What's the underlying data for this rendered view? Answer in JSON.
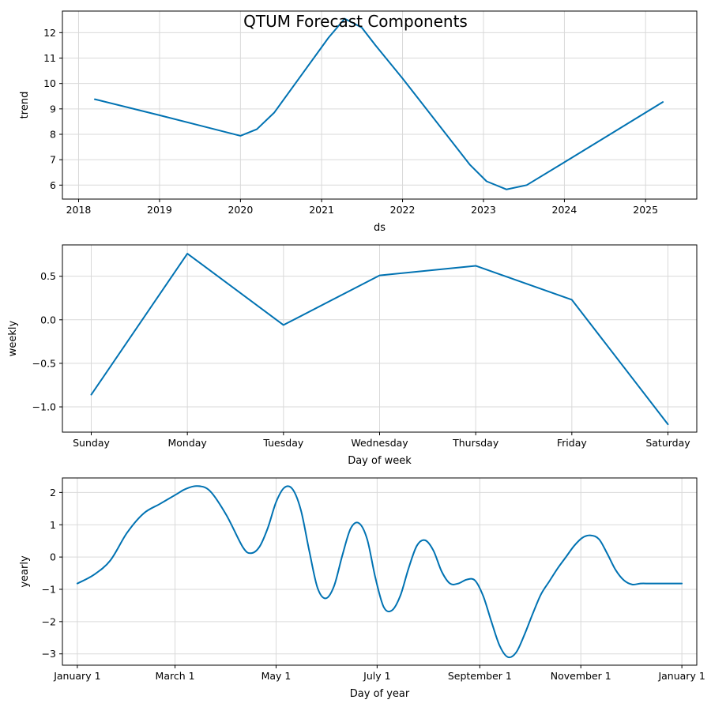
{
  "figure": {
    "title": "QTUM Forecast Components",
    "line_color": "#0072B2",
    "grid": true
  },
  "chart_data": [
    {
      "type": "line",
      "xlabel": "ds",
      "ylabel": "trend",
      "x_is_date": true,
      "xlim": [
        "2017-10-20",
        "2025-08-20"
      ],
      "ylim": [
        5.45,
        12.85
      ],
      "xticks": [
        {
          "value": "2018-01-01",
          "label": "2018"
        },
        {
          "value": "2019-01-01",
          "label": "2019"
        },
        {
          "value": "2020-01-01",
          "label": "2020"
        },
        {
          "value": "2021-01-01",
          "label": "2021"
        },
        {
          "value": "2022-01-01",
          "label": "2022"
        },
        {
          "value": "2023-01-01",
          "label": "2023"
        },
        {
          "value": "2024-01-01",
          "label": "2024"
        },
        {
          "value": "2025-01-01",
          "label": "2025"
        }
      ],
      "yticks": [
        {
          "value": 6,
          "label": "6"
        },
        {
          "value": 7,
          "label": "7"
        },
        {
          "value": 8,
          "label": "8"
        },
        {
          "value": 9,
          "label": "9"
        },
        {
          "value": 10,
          "label": "10"
        },
        {
          "value": 11,
          "label": "11"
        },
        {
          "value": 12,
          "label": "12"
        }
      ],
      "series": [
        {
          "x": [
            "2018-03-15",
            "2019-01-01",
            "2020-01-01",
            "2020-03-15",
            "2020-06-01",
            "2021-02-01",
            "2021-04-15",
            "2021-07-01",
            "2021-09-01",
            "2022-01-01",
            "2022-11-01",
            "2023-01-15",
            "2023-04-15",
            "2023-07-15",
            "2024-01-01",
            "2025-03-20"
          ],
          "y": [
            9.38,
            8.75,
            7.94,
            8.2,
            8.85,
            11.8,
            12.55,
            12.2,
            11.5,
            10.2,
            6.8,
            6.15,
            5.83,
            6.0,
            6.9,
            9.27
          ]
        }
      ]
    },
    {
      "type": "line",
      "xlabel": "Day of week",
      "ylabel": "weekly",
      "xlim": [
        -0.3,
        6.3
      ],
      "ylim": [
        -1.29,
        0.86
      ],
      "xticks": [
        {
          "value": 0,
          "label": "Sunday"
        },
        {
          "value": 1,
          "label": "Monday"
        },
        {
          "value": 2,
          "label": "Tuesday"
        },
        {
          "value": 3,
          "label": "Wednesday"
        },
        {
          "value": 4,
          "label": "Thursday"
        },
        {
          "value": 5,
          "label": "Friday"
        },
        {
          "value": 6,
          "label": "Saturday"
        }
      ],
      "yticks": [
        {
          "value": -1.0,
          "label": "−1.0"
        },
        {
          "value": -0.5,
          "label": "−0.5"
        },
        {
          "value": 0.0,
          "label": "0.0"
        },
        {
          "value": 0.5,
          "label": "0.5"
        }
      ],
      "series": [
        {
          "x": [
            0,
            1,
            2,
            3,
            4,
            5,
            6
          ],
          "y": [
            -0.86,
            0.76,
            -0.06,
            0.51,
            0.62,
            0.23,
            -1.2
          ]
        }
      ]
    },
    {
      "type": "line",
      "xlabel": "Day of year",
      "ylabel": "yearly",
      "smooth": true,
      "xlim": [
        -9,
        374
      ],
      "ylim": [
        -3.35,
        2.45
      ],
      "xticks": [
        {
          "value": 0,
          "label": "January 1"
        },
        {
          "value": 59,
          "label": "March 1"
        },
        {
          "value": 120,
          "label": "May 1"
        },
        {
          "value": 181,
          "label": "July 1"
        },
        {
          "value": 243,
          "label": "September 1"
        },
        {
          "value": 304,
          "label": "November 1"
        },
        {
          "value": 365,
          "label": "January 1"
        }
      ],
      "yticks": [
        {
          "value": -3,
          "label": "−3"
        },
        {
          "value": -2,
          "label": "−2"
        },
        {
          "value": -1,
          "label": "−1"
        },
        {
          "value": 0,
          "label": "0"
        },
        {
          "value": 1,
          "label": "1"
        },
        {
          "value": 2,
          "label": "2"
        }
      ],
      "series": [
        {
          "x": [
            0,
            10,
            20,
            30,
            40,
            50,
            60,
            65,
            72,
            80,
            90,
            100,
            105,
            110,
            115,
            120,
            125,
            130,
            135,
            140,
            145,
            150,
            155,
            160,
            165,
            170,
            175,
            180,
            185,
            190,
            195,
            200,
            205,
            210,
            215,
            220,
            225,
            230,
            235,
            240,
            245,
            250,
            255,
            260,
            265,
            270,
            275,
            280,
            285,
            290,
            295,
            300,
            305,
            310,
            315,
            320,
            325,
            330,
            335,
            340,
            345,
            350,
            355,
            360,
            365
          ],
          "y": [
            -0.82,
            -0.55,
            -0.1,
            0.75,
            1.35,
            1.65,
            1.95,
            2.1,
            2.2,
            2.05,
            1.3,
            0.3,
            0.12,
            0.32,
            0.9,
            1.7,
            2.15,
            2.1,
            1.45,
            0.2,
            -0.95,
            -1.28,
            -0.9,
            0.05,
            0.88,
            1.05,
            0.55,
            -0.65,
            -1.55,
            -1.65,
            -1.2,
            -0.35,
            0.35,
            0.52,
            0.2,
            -0.45,
            -0.82,
            -0.82,
            -0.7,
            -0.72,
            -1.2,
            -2.0,
            -2.75,
            -3.1,
            -2.95,
            -2.4,
            -1.75,
            -1.15,
            -0.75,
            -0.35,
            0.0,
            0.35,
            0.6,
            0.67,
            0.55,
            0.1,
            -0.4,
            -0.72,
            -0.85,
            -0.82,
            -0.82,
            -0.82,
            -0.82,
            -0.82,
            -0.82
          ]
        }
      ]
    }
  ]
}
